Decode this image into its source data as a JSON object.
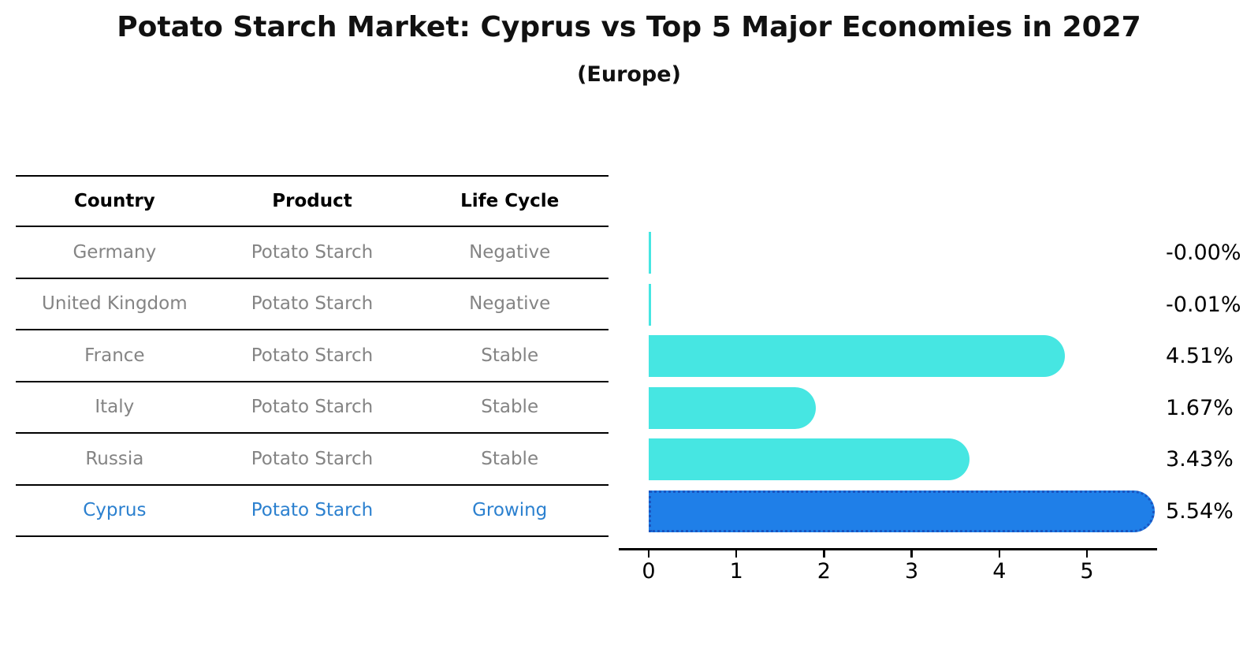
{
  "title": "Potato Starch Market: Cyprus vs Top 5 Major Economies in 2027",
  "subtitle": "(Europe)",
  "table": {
    "headers": [
      "Country",
      "Product",
      "Life Cycle"
    ],
    "rows": [
      {
        "country": "Germany",
        "product": "Potato Starch",
        "life_cycle": "Negative",
        "highlight": false
      },
      {
        "country": "United Kingdom",
        "product": "Potato Starch",
        "life_cycle": "Negative",
        "highlight": false
      },
      {
        "country": "France",
        "product": "Potato Starch",
        "life_cycle": "Stable",
        "highlight": false
      },
      {
        "country": "Italy",
        "product": "Potato Starch",
        "life_cycle": "Stable",
        "highlight": false
      },
      {
        "country": "Russia",
        "product": "Potato Starch",
        "life_cycle": "Stable",
        "highlight": false
      },
      {
        "country": "Cyprus",
        "product": "Potato Starch",
        "life_cycle": "Growing",
        "highlight": true
      }
    ]
  },
  "chart_data": {
    "type": "bar",
    "orientation": "horizontal",
    "title": "Potato Starch Market: Cyprus vs Top 5 Major Economies in 2027 (Europe)",
    "categories": [
      "Germany",
      "United Kingdom",
      "France",
      "Italy",
      "Russia",
      "Cyprus"
    ],
    "values": [
      -0.0,
      -0.01,
      4.51,
      1.67,
      3.43,
      5.54
    ],
    "value_labels": [
      "-0.00%",
      "-0.01%",
      "4.51%",
      "1.67%",
      "3.43%",
      "5.54%"
    ],
    "x_ticks": [
      0,
      1,
      2,
      3,
      4,
      5
    ],
    "xlim": [
      0,
      5.9
    ],
    "grid": false,
    "legend": false,
    "bar_color": "#46e6e2",
    "highlight_index": 5,
    "highlight_color": "#1f7fe8",
    "highlight_border_color": "#1a55c0"
  },
  "colors": {
    "row_text": "#848484",
    "highlight_text": "#2b80cf",
    "axis": "#000000"
  }
}
